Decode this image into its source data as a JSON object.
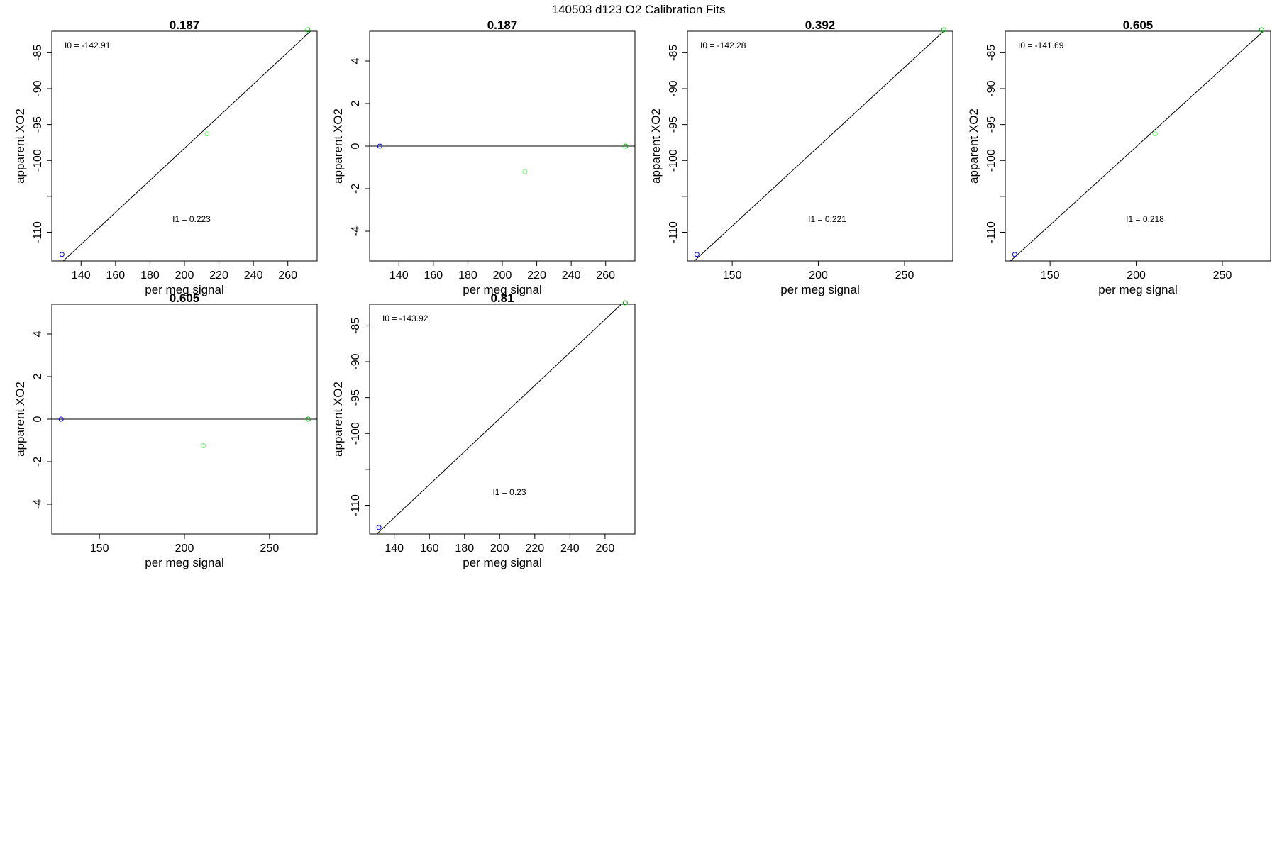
{
  "figure": {
    "title": "140503   d123   O2 Calibration Fits",
    "colors": {
      "blue": "#0000ff",
      "green": "#00c000",
      "lightgreen": "#66ff66",
      "line": "#000000"
    }
  },
  "chart_data": [
    {
      "type": "scatter",
      "title": "0.187",
      "xlabel": "per meg signal",
      "ylabel": "apparent XO2",
      "xlim": [
        123,
        277
      ],
      "ylim": [
        -114,
        -82
      ],
      "xticks": [
        140,
        160,
        180,
        200,
        220,
        240,
        260
      ],
      "yticks": [
        -110,
        -105,
        -100,
        -95,
        -90,
        -85
      ],
      "ytick_labels": [
        "-110",
        "",
        "-100",
        "-95",
        "-90",
        "-85"
      ],
      "points": [
        {
          "x": 128.9,
          "y": -113.1,
          "color": "blue"
        },
        {
          "x": 213.1,
          "y": -96.3,
          "color": "lightgreen"
        },
        {
          "x": 271.6,
          "y": -81.8,
          "color": "green"
        }
      ],
      "fit_line": {
        "intercept": -142.91,
        "slope": 0.223
      },
      "annotations": [
        {
          "text": "I0 =  -142.91",
          "pos": "top-left"
        },
        {
          "text": "I1 =  0.223",
          "pos": "bottom-center"
        }
      ]
    },
    {
      "type": "scatter",
      "title": "0.187",
      "xlabel": "per meg signal",
      "ylabel": "apparent XO2",
      "xlim": [
        123,
        277
      ],
      "ylim": [
        -5.4,
        5.4
      ],
      "xticks": [
        140,
        160,
        180,
        200,
        220,
        240,
        260
      ],
      "yticks": [
        -4,
        -2,
        0,
        2,
        4
      ],
      "points": [
        {
          "x": 128.9,
          "y": 0,
          "color": "blue"
        },
        {
          "x": 213.1,
          "y": -1.2,
          "color": "lightgreen"
        },
        {
          "x": 271.6,
          "y": 0,
          "color": "green"
        }
      ],
      "fit_line": {
        "intercept": 0,
        "slope": 0
      },
      "annotations": []
    },
    {
      "type": "scatter",
      "title": "0.392",
      "xlabel": "per meg signal",
      "ylabel": "apparent XO2",
      "xlim": [
        124,
        278
      ],
      "ylim": [
        -114,
        -82
      ],
      "xticks": [
        150,
        200,
        250
      ],
      "yticks": [
        -110,
        -105,
        -100,
        -95,
        -90,
        -85
      ],
      "ytick_labels": [
        "-110",
        "",
        "-100",
        "-95",
        "-90",
        "-85"
      ],
      "points": [
        {
          "x": 129.5,
          "y": -113.1,
          "color": "blue"
        },
        {
          "x": 272.8,
          "y": -81.8,
          "color": "green"
        }
      ],
      "fit_line": {
        "intercept": -142.28,
        "slope": 0.221
      },
      "annotations": [
        {
          "text": "I0 =  -142.28",
          "pos": "top-left"
        },
        {
          "text": "I1 =  0.221",
          "pos": "bottom-center"
        }
      ]
    },
    {
      "type": "scatter",
      "title": "0.605",
      "xlabel": "per meg signal",
      "ylabel": "apparent XO2",
      "xlim": [
        124,
        278
      ],
      "ylim": [
        -114,
        -82
      ],
      "xticks": [
        150,
        200,
        250
      ],
      "yticks": [
        -110,
        -105,
        -100,
        -95,
        -90,
        -85
      ],
      "ytick_labels": [
        "-110",
        "",
        "-100",
        "-95",
        "-90",
        "-85"
      ],
      "points": [
        {
          "x": 129.5,
          "y": -113.1,
          "color": "blue"
        },
        {
          "x": 211.1,
          "y": -96.3,
          "color": "lightgreen"
        },
        {
          "x": 272.8,
          "y": -81.8,
          "color": "green"
        }
      ],
      "fit_line": {
        "intercept": -141.69,
        "slope": 0.218
      },
      "annotations": [
        {
          "text": "I0 =  -141.69",
          "pos": "top-left"
        },
        {
          "text": "I1 =  0.218",
          "pos": "bottom-center"
        }
      ]
    },
    {
      "type": "scatter",
      "title": "0.605",
      "xlabel": "per meg signal",
      "ylabel": "apparent XO2",
      "xlim": [
        122,
        278
      ],
      "ylim": [
        -5.4,
        5.4
      ],
      "xticks": [
        150,
        200,
        250
      ],
      "yticks": [
        -4,
        -2,
        0,
        2,
        4
      ],
      "points": [
        {
          "x": 127.5,
          "y": 0,
          "color": "blue"
        },
        {
          "x": 211.1,
          "y": -1.25,
          "color": "lightgreen"
        },
        {
          "x": 272.8,
          "y": 0,
          "color": "green"
        }
      ],
      "fit_line": {
        "intercept": 0,
        "slope": 0
      },
      "annotations": []
    },
    {
      "type": "scatter",
      "title": "0.81",
      "xlabel": "per meg signal",
      "ylabel": "apparent XO2",
      "xlim": [
        126,
        277
      ],
      "ylim": [
        -114,
        -82
      ],
      "xticks": [
        140,
        160,
        180,
        200,
        220,
        240,
        260
      ],
      "yticks": [
        -110,
        -105,
        -100,
        -95,
        -90,
        -85
      ],
      "ytick_labels": [
        "-110",
        "",
        "-100",
        "-95",
        "-90",
        "-85"
      ],
      "points": [
        {
          "x": 131.3,
          "y": -113.1,
          "color": "blue"
        },
        {
          "x": 271.5,
          "y": -81.8,
          "color": "green"
        }
      ],
      "fit_line": {
        "intercept": -143.92,
        "slope": 0.23
      },
      "annotations": [
        {
          "text": "I0 =  -143.92",
          "pos": "top-left"
        },
        {
          "text": "I1 =  0.23",
          "pos": "bottom-center"
        }
      ]
    }
  ]
}
